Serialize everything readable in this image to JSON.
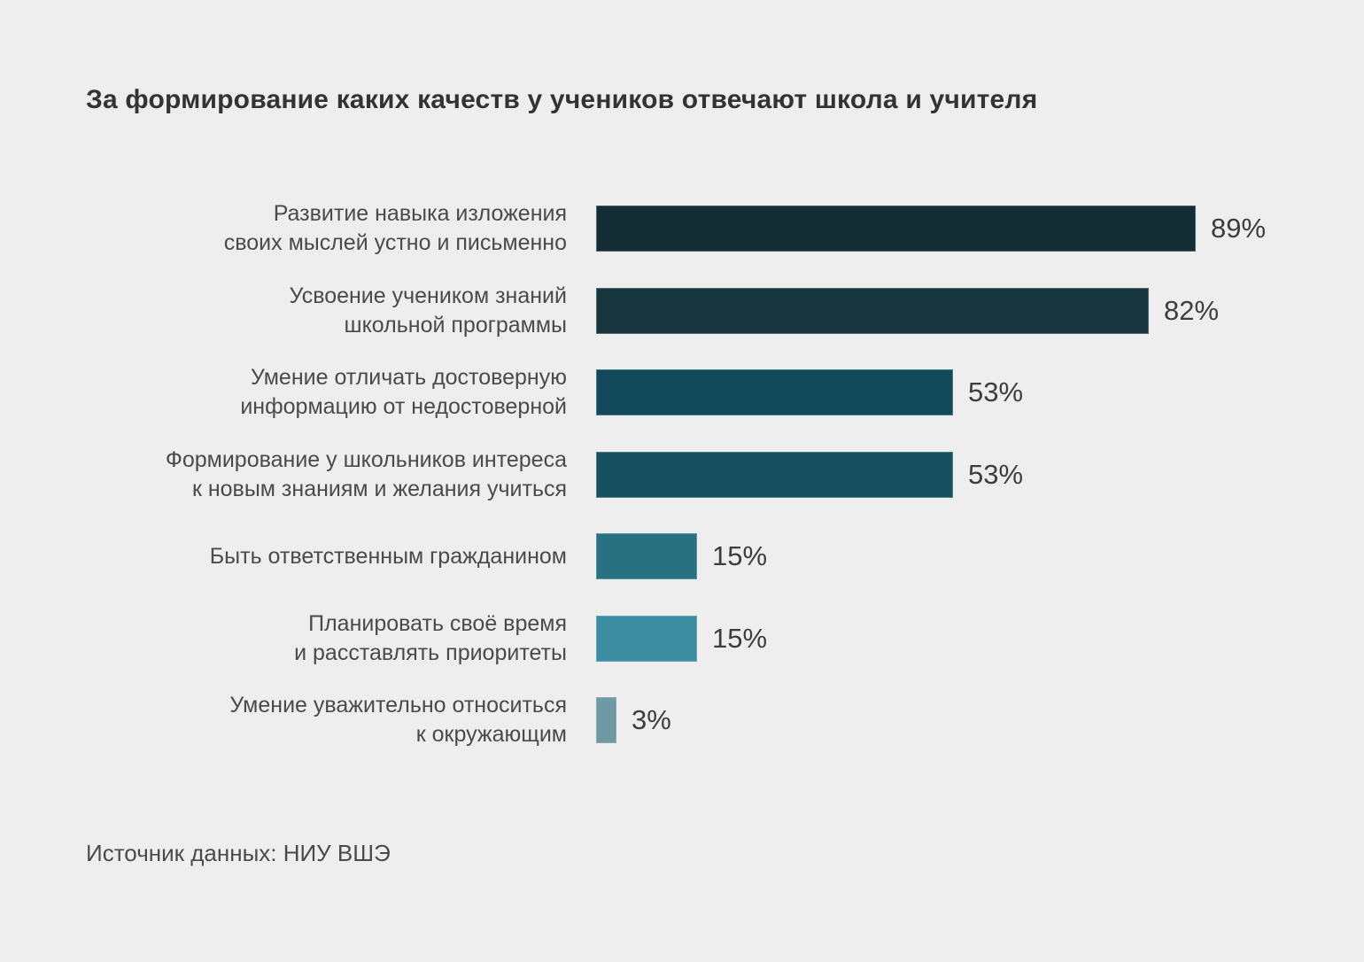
{
  "chart_data": {
    "type": "bar",
    "orientation": "horizontal",
    "title": "За формирование каких качеств у учеников отвечают школа и учителя",
    "categories": [
      "Развитие навыка изложения своих мыслей устно и письменно",
      "Усвоение учеником знаний школьной программы",
      "Умение отличать достоверную информацию от недостоверной",
      "Формирование у школьников интереса к новым знаниям и желания учиться",
      "Быть ответственным гражданином",
      "Планировать своё время и расставлять приоритеты",
      "Умение уважительно относиться к окружающим"
    ],
    "category_lines": [
      [
        "Развитие навыка изложения",
        "своих мыслей устно и письменно"
      ],
      [
        "Усвоение учеником знаний",
        "школьной программы"
      ],
      [
        "Умение отличать достоверную",
        "информацию от недостоверной"
      ],
      [
        "Формирование у школьников интереса",
        "к новым знаниям и желания учиться"
      ],
      [
        "Быть ответственным гражданином"
      ],
      [
        "Планировать своё время",
        "и расставлять приоритеты"
      ],
      [
        "Умение уважительно относиться",
        "к окружающим"
      ]
    ],
    "values": [
      89,
      82,
      53,
      53,
      15,
      15,
      3
    ],
    "value_labels": [
      "89%",
      "82%",
      "53%",
      "53%",
      "15%",
      "15%",
      "3%"
    ],
    "bar_colors": [
      "#142d34",
      "#17353d",
      "#11495a",
      "#17505e",
      "#277181",
      "#3b8ca0",
      "#6f9aa4"
    ],
    "xlim": [
      0,
      100
    ],
    "grid": false,
    "legend": false,
    "background_color": "#eeeeee",
    "source": "Источник данных: НИУ ВШЭ"
  }
}
